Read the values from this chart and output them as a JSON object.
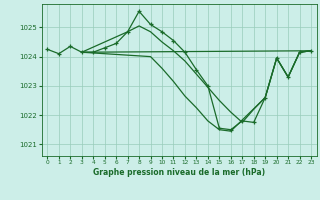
{
  "background_color": "#cceee8",
  "grid_color": "#99ccbb",
  "line_color": "#1a6b2a",
  "title": "Graphe pression niveau de la mer (hPa)",
  "ylim": [
    1020.6,
    1025.8
  ],
  "xlim": [
    -0.5,
    23.5
  ],
  "yticks": [
    1021,
    1022,
    1023,
    1024,
    1025
  ],
  "xticks": [
    0,
    1,
    2,
    3,
    4,
    5,
    6,
    7,
    8,
    9,
    10,
    11,
    12,
    13,
    14,
    15,
    16,
    17,
    18,
    19,
    20,
    21,
    22,
    23
  ],
  "series1_x": [
    0,
    1,
    2,
    3,
    4,
    5,
    6,
    7,
    8,
    9,
    10,
    11,
    12,
    13,
    14,
    15,
    16,
    17,
    18,
    19,
    20,
    21,
    22,
    23
  ],
  "series1_y": [
    1024.25,
    1024.1,
    1024.35,
    1024.15,
    1024.15,
    1024.3,
    1024.45,
    1024.85,
    1025.55,
    1025.1,
    1024.85,
    1024.55,
    1024.15,
    1023.55,
    1023.0,
    1021.55,
    1021.5,
    1021.8,
    1021.75,
    1022.6,
    1023.95,
    1023.3,
    1024.15,
    1024.2
  ],
  "series2_x": [
    3,
    23
  ],
  "series2_y": [
    1024.15,
    1024.2
  ],
  "series3_x": [
    3,
    7,
    8,
    9,
    10,
    11,
    12,
    13,
    14,
    15,
    16,
    17,
    18,
    19,
    20,
    21,
    22,
    23
  ],
  "series3_y": [
    1024.15,
    1024.85,
    1025.05,
    1024.85,
    1024.5,
    1024.2,
    1023.85,
    1023.4,
    1022.95,
    1022.5,
    1022.1,
    1021.75,
    1022.2,
    1022.6,
    1023.95,
    1023.3,
    1024.15,
    1024.2
  ],
  "series4_x": [
    3,
    9,
    10,
    11,
    12,
    13,
    14,
    15,
    16,
    19,
    20,
    21,
    22,
    23
  ],
  "series4_y": [
    1024.15,
    1024.0,
    1023.6,
    1023.15,
    1022.65,
    1022.25,
    1021.8,
    1021.5,
    1021.45,
    1022.6,
    1023.95,
    1023.3,
    1024.15,
    1024.2
  ]
}
